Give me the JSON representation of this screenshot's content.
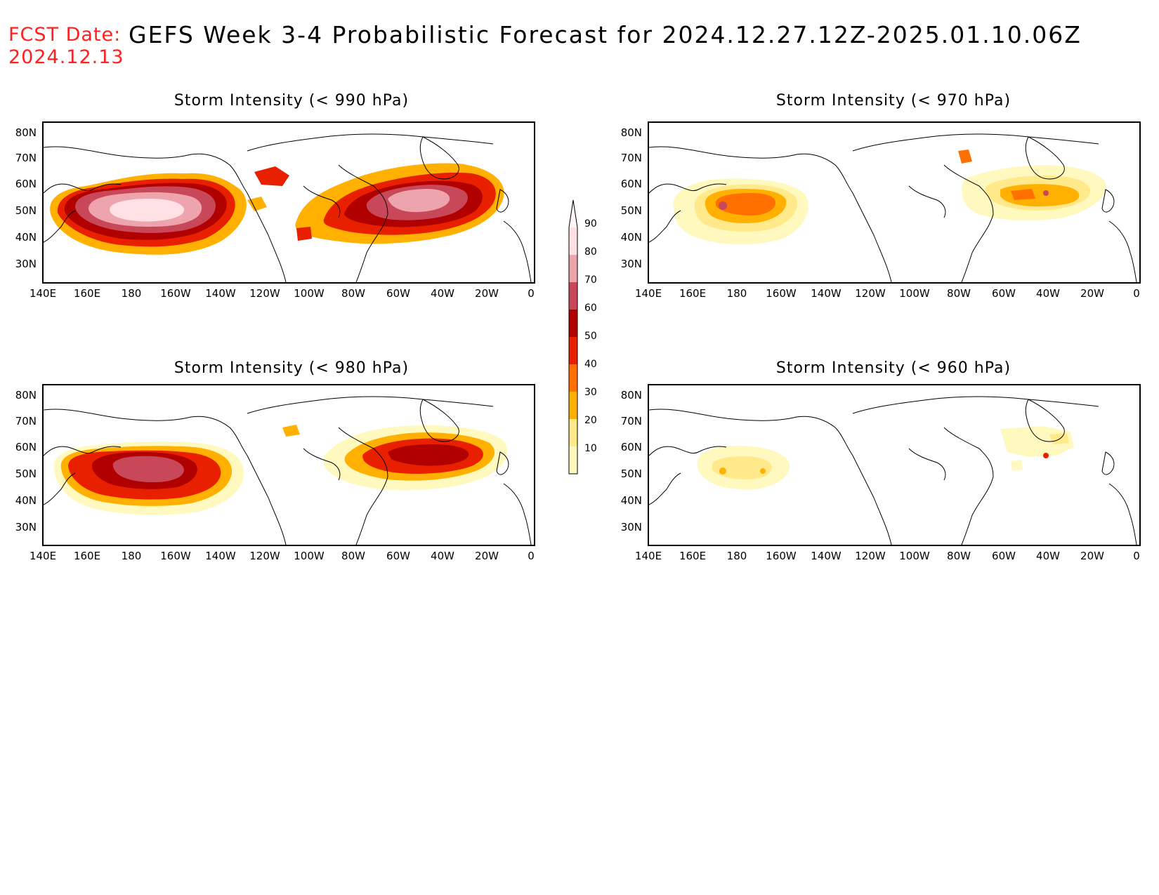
{
  "header": {
    "fcst_label": "FCST Date:",
    "fcst_date": "2024.12.13",
    "title": "GEFS Week 3-4 Probabilistic Forecast for 2024.12.27.12Z-2025.01.10.06Z"
  },
  "panels": [
    {
      "id": "p990",
      "title": "Storm Intensity (< 990 hPa)",
      "threshold": 990
    },
    {
      "id": "p970",
      "title": "Storm Intensity (< 970 hPa)",
      "threshold": 970
    },
    {
      "id": "p980",
      "title": "Storm Intensity (< 980 hPa)",
      "threshold": 980
    },
    {
      "id": "p960",
      "title": "Storm Intensity (< 960 hPa)",
      "threshold": 960
    }
  ],
  "axes": {
    "lat_ticks": [
      "80N",
      "70N",
      "60N",
      "50N",
      "40N",
      "30N"
    ],
    "lon_ticks": [
      "140E",
      "160E",
      "180",
      "160W",
      "140W",
      "120W",
      "100W",
      "80W",
      "60W",
      "40W",
      "20W",
      "0"
    ]
  },
  "colorbar": {
    "levels": [
      "10",
      "20",
      "30",
      "40",
      "50",
      "60",
      "70",
      "80",
      "90"
    ],
    "colors": [
      "#fff9c0",
      "#ffe98a",
      "#ffb000",
      "#ff7000",
      "#e82000",
      "#b00000",
      "#c8485a",
      "#eda4ac",
      "#ffe0e4",
      "#fff4f6"
    ]
  }
}
